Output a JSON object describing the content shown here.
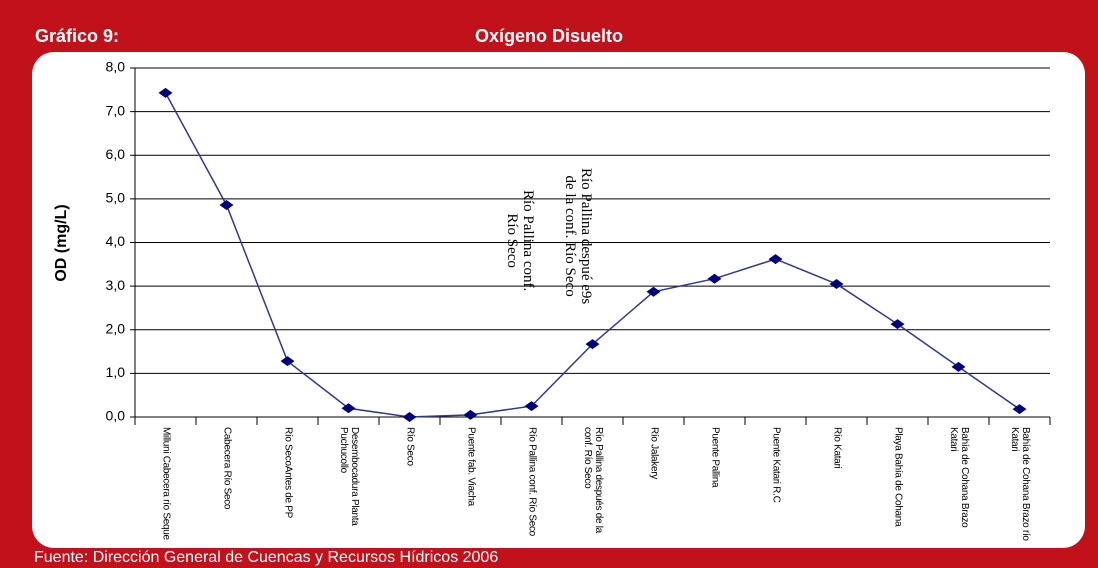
{
  "header": {
    "label": "Gráfico 9:"
  },
  "chart_data": {
    "type": "line",
    "title": "Oxígeno Disuelto",
    "y_label": "OD (mg/L)",
    "categories": [
      "Milluni Cabecera río Seque",
      "Cabecera Río Seco",
      "Río SecoAntes de PP",
      "Desembocadura Planta Puchucollo",
      "Río Seco",
      "Puente fab. Viacha",
      "Río Pallina conf. Río Seco",
      "Río Pallina después de la conf. Río Seco",
      "Río Jalakery",
      "Puente Pallina",
      "Puente Katari R.C",
      "Río Katari",
      "Playa Bahía de Cohana",
      "Bahía de Cohana Brazo Katari",
      "Bahía de Cohana Brazo río Katari"
    ],
    "series": [
      {
        "name": "OD",
        "color": "#2e3a8c",
        "marker_color": "#00007a",
        "values": [
          7.43,
          4.86,
          1.28,
          0.2,
          0.0,
          0.05,
          0.25,
          1.67,
          2.87,
          3.17,
          3.62,
          3.05,
          2.13,
          1.15,
          0.18
        ]
      }
    ],
    "ylim": [
      0,
      8
    ],
    "yticks": [
      {
        "value": 0,
        "label": "0,0"
      },
      {
        "value": 1,
        "label": "1,0"
      },
      {
        "value": 2,
        "label": "2,0"
      },
      {
        "value": 3,
        "label": "3,0"
      },
      {
        "value": 4,
        "label": "4,0"
      },
      {
        "value": 5,
        "label": "5,0"
      },
      {
        "value": 6,
        "label": "6,0"
      },
      {
        "value": 7,
        "label": "7,0"
      },
      {
        "value": 8,
        "label": "8,0"
      }
    ],
    "grid": true,
    "annotations": [
      {
        "lines": [
          "Río Pallina despué e9s",
          "de la conf. Río Seco"
        ]
      },
      {
        "lines": [
          "Río Pallina conf.",
          "Río Seco"
        ]
      }
    ]
  },
  "footer": {
    "source": "Fuente: Dirección General de Cuencas y Recursos Hídricos 2006"
  }
}
